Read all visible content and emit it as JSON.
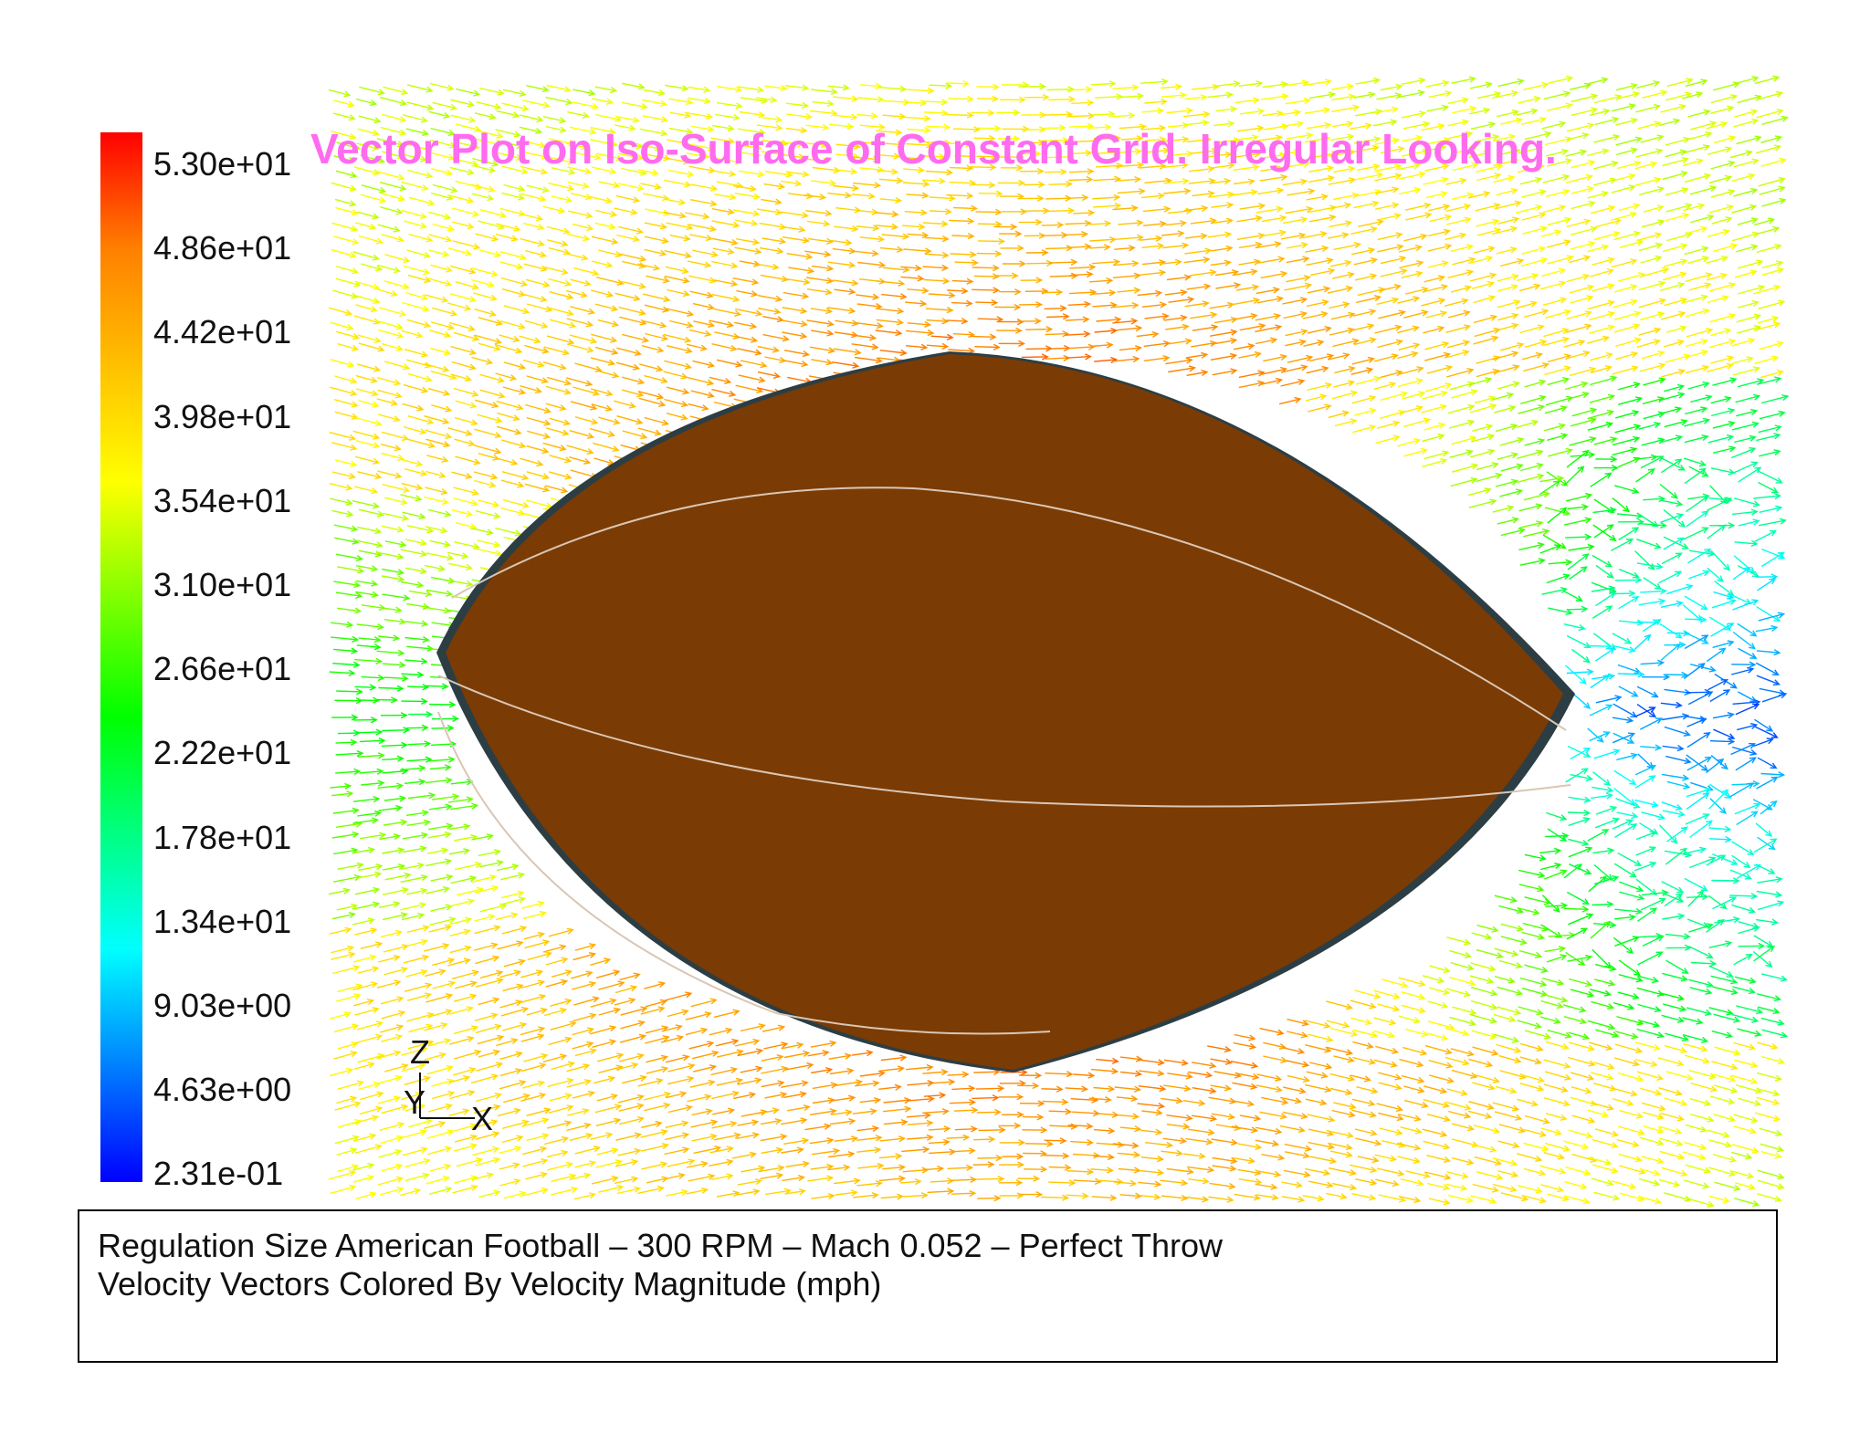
{
  "title": "Vector Plot on Iso-Surface of Constant Grid. Irregular Looking.",
  "colorbar": {
    "labels": [
      "5.30e+01",
      "4.86e+01",
      "4.42e+01",
      "3.98e+01",
      "3.54e+01",
      "3.10e+01",
      "2.66e+01",
      "2.22e+01",
      "1.78e+01",
      "1.34e+01",
      "9.03e+00",
      "4.63e+00",
      "2.31e-01"
    ],
    "min": 0.231,
    "max": 53.0,
    "colors": [
      "#0000ff",
      "#0080ff",
      "#00ffff",
      "#00ff80",
      "#00ff00",
      "#80ff00",
      "#ffff00",
      "#ffc000",
      "#ff8000",
      "#ff0000"
    ]
  },
  "axes": {
    "z": "Z",
    "y": "Y",
    "x": "X"
  },
  "caption": {
    "line1": "Regulation Size American Football – 300 RPM – Mach 0.052 – Perfect Throw",
    "line2": "Velocity Vectors Colored By Velocity Magnitude (mph)"
  },
  "colors": {
    "title": "#ff6bef",
    "football": "#7a3b05",
    "seam": "#d9c6b4",
    "football_edge": "#2c3e44"
  }
}
